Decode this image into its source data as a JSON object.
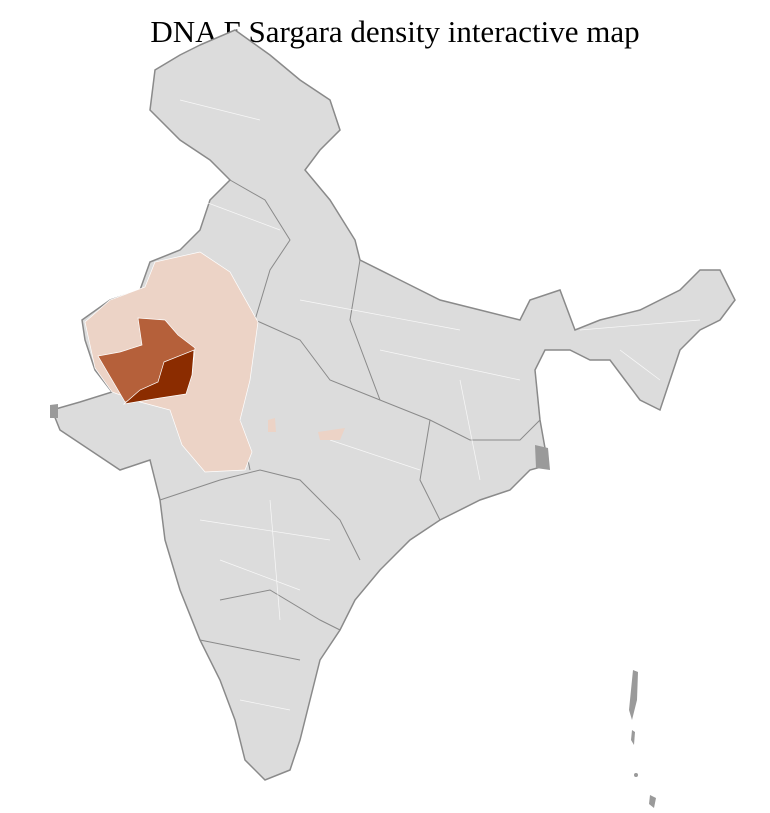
{
  "title": "DNA F Sargara density interactive map",
  "map": {
    "type": "choropleth",
    "region": "India districts",
    "colors": {
      "no_data": "#dcdcdc",
      "border_state": "#8a8a8a",
      "border_district": "#ffffff",
      "low": "#ecd3c6",
      "medium": "#b5603a",
      "high": "#8b2c00"
    }
  }
}
